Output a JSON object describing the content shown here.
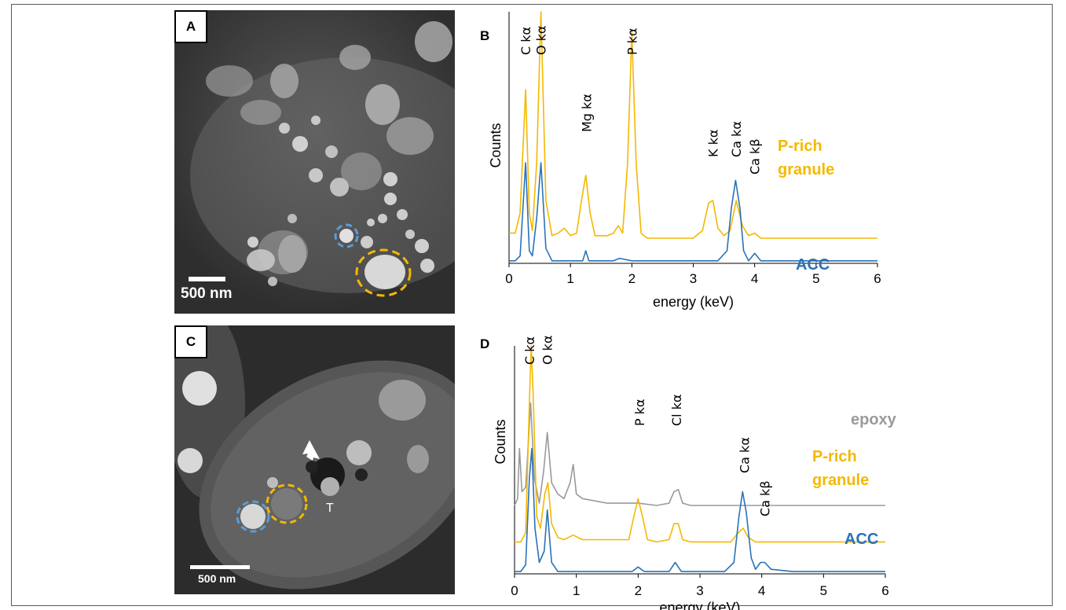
{
  "panels": {
    "A": {
      "label": "A",
      "scale_bar": "500 nm"
    },
    "B": {
      "label": "B"
    },
    "C": {
      "label": "C",
      "scale_bar": "500 nm",
      "marker": "T"
    },
    "D": {
      "label": "D"
    }
  },
  "colors": {
    "p_rich": "#f5b800",
    "acc": "#2a72b8",
    "epoxy": "#9a9a9a",
    "marker_blue": "#5b9bd5",
    "marker_orange": "#f5b800"
  },
  "chart_data": [
    {
      "type": "line",
      "panel": "B",
      "xlabel": "energy (keV)",
      "ylabel": "Counts",
      "xlim": [
        0,
        6
      ],
      "xticks": [
        "0",
        "1",
        "2",
        "3",
        "4",
        "5",
        "6"
      ],
      "peak_labels": [
        "C kα",
        "O kα",
        "Mg kα",
        "P kα",
        "K kα",
        "Ca kα",
        "Ca kβ"
      ],
      "series": [
        {
          "name": "P-rich granule",
          "x": [
            0.0,
            0.1,
            0.18,
            0.27,
            0.33,
            0.38,
            0.45,
            0.52,
            0.6,
            0.7,
            0.8,
            0.9,
            1.0,
            1.1,
            1.18,
            1.25,
            1.32,
            1.4,
            1.5,
            1.6,
            1.7,
            1.78,
            1.85,
            1.93,
            2.0,
            2.07,
            2.15,
            2.25,
            2.4,
            2.6,
            2.8,
            3.0,
            3.15,
            3.25,
            3.32,
            3.4,
            3.5,
            3.6,
            3.7,
            3.8,
            3.9,
            4.0,
            4.1,
            4.3,
            4.6,
            5.0,
            5.5,
            6.0
          ],
          "y": [
            0.12,
            0.12,
            0.2,
            0.69,
            0.2,
            0.13,
            0.4,
            1.0,
            0.25,
            0.11,
            0.12,
            0.14,
            0.11,
            0.12,
            0.25,
            0.35,
            0.2,
            0.11,
            0.11,
            0.11,
            0.12,
            0.15,
            0.12,
            0.4,
            0.92,
            0.4,
            0.12,
            0.1,
            0.1,
            0.1,
            0.1,
            0.1,
            0.13,
            0.24,
            0.25,
            0.14,
            0.11,
            0.13,
            0.25,
            0.15,
            0.11,
            0.12,
            0.1,
            0.1,
            0.1,
            0.1,
            0.1,
            0.1
          ]
        },
        {
          "name": "ACC",
          "x": [
            0.0,
            0.1,
            0.18,
            0.27,
            0.33,
            0.38,
            0.45,
            0.52,
            0.6,
            0.7,
            0.8,
            1.0,
            1.2,
            1.25,
            1.3,
            1.5,
            1.7,
            1.8,
            2.0,
            2.5,
            3.0,
            3.4,
            3.55,
            3.62,
            3.69,
            3.76,
            3.82,
            3.9,
            4.0,
            4.1,
            4.3,
            4.6,
            5.0,
            5.5,
            6.0
          ],
          "y": [
            0.01,
            0.01,
            0.03,
            0.4,
            0.05,
            0.03,
            0.18,
            0.4,
            0.06,
            0.01,
            0.01,
            0.01,
            0.01,
            0.05,
            0.01,
            0.01,
            0.01,
            0.02,
            0.01,
            0.01,
            0.01,
            0.01,
            0.05,
            0.22,
            0.33,
            0.22,
            0.05,
            0.01,
            0.04,
            0.01,
            0.01,
            0.01,
            0.01,
            0.01,
            0.01
          ]
        }
      ]
    },
    {
      "type": "line",
      "panel": "D",
      "xlabel": "energy (keV)",
      "ylabel": "Counts",
      "xlim": [
        0,
        6
      ],
      "xticks": [
        "0",
        "1",
        "2",
        "3",
        "4",
        "5",
        "6"
      ],
      "peak_labels": [
        "C kα",
        "O kα",
        "P kα",
        "Cl kα",
        "Ca kα",
        "Ca kβ"
      ],
      "series": [
        {
          "name": "epoxy",
          "x": [
            0.0,
            0.05,
            0.08,
            0.12,
            0.18,
            0.26,
            0.32,
            0.4,
            0.47,
            0.53,
            0.6,
            0.7,
            0.8,
            0.9,
            0.95,
            1.0,
            1.1,
            1.3,
            1.5,
            1.7,
            2.0,
            2.3,
            2.5,
            2.58,
            2.65,
            2.72,
            2.85,
            3.0,
            3.5,
            4.0,
            5.0,
            5.5,
            6.0
          ],
          "y": [
            0.3,
            0.33,
            0.55,
            0.36,
            0.38,
            0.75,
            0.42,
            0.31,
            0.45,
            0.62,
            0.4,
            0.35,
            0.33,
            0.4,
            0.48,
            0.35,
            0.33,
            0.32,
            0.31,
            0.31,
            0.31,
            0.3,
            0.31,
            0.36,
            0.37,
            0.31,
            0.3,
            0.3,
            0.3,
            0.3,
            0.3,
            0.3,
            0.3
          ]
        },
        {
          "name": "P-rich granule",
          "x": [
            0.0,
            0.1,
            0.18,
            0.24,
            0.27,
            0.3,
            0.36,
            0.42,
            0.49,
            0.54,
            0.6,
            0.7,
            0.8,
            0.95,
            1.1,
            1.3,
            1.6,
            1.85,
            1.93,
            2.0,
            2.08,
            2.15,
            2.3,
            2.5,
            2.58,
            2.65,
            2.72,
            2.85,
            3.0,
            3.5,
            3.62,
            3.7,
            3.78,
            3.9,
            4.1,
            4.5,
            5.0,
            5.5,
            6.0
          ],
          "y": [
            0.14,
            0.14,
            0.18,
            0.75,
            1.0,
            0.8,
            0.25,
            0.2,
            0.35,
            0.4,
            0.22,
            0.16,
            0.15,
            0.17,
            0.15,
            0.15,
            0.15,
            0.15,
            0.25,
            0.33,
            0.24,
            0.15,
            0.14,
            0.15,
            0.22,
            0.22,
            0.15,
            0.14,
            0.14,
            0.14,
            0.18,
            0.2,
            0.16,
            0.14,
            0.14,
            0.14,
            0.14,
            0.14,
            0.14
          ]
        },
        {
          "name": "ACC",
          "x": [
            0.0,
            0.1,
            0.18,
            0.24,
            0.28,
            0.33,
            0.4,
            0.48,
            0.53,
            0.6,
            0.7,
            0.8,
            1.0,
            1.5,
            1.9,
            2.0,
            2.1,
            2.5,
            2.6,
            2.7,
            3.0,
            3.4,
            3.55,
            3.63,
            3.69,
            3.75,
            3.83,
            3.9,
            3.98,
            4.05,
            4.15,
            4.5,
            5.0,
            5.5,
            6.0
          ],
          "y": [
            0.01,
            0.01,
            0.04,
            0.42,
            0.55,
            0.2,
            0.05,
            0.1,
            0.28,
            0.05,
            0.01,
            0.01,
            0.01,
            0.01,
            0.01,
            0.03,
            0.01,
            0.01,
            0.05,
            0.01,
            0.01,
            0.01,
            0.05,
            0.25,
            0.36,
            0.27,
            0.07,
            0.02,
            0.05,
            0.05,
            0.02,
            0.01,
            0.01,
            0.01,
            0.01
          ]
        }
      ]
    }
  ]
}
